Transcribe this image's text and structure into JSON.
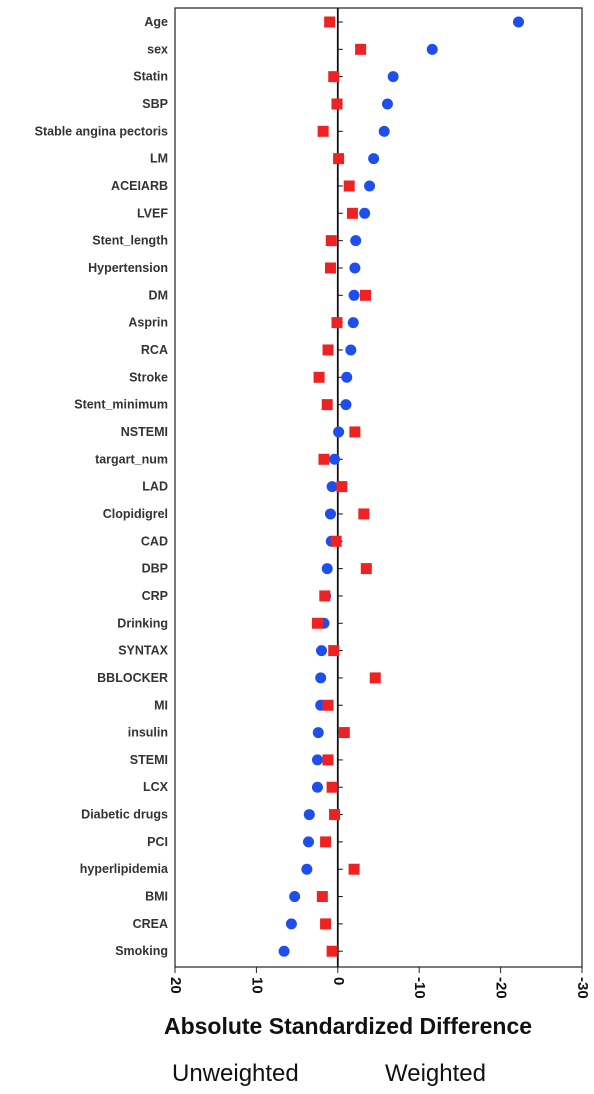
{
  "chart_data": {
    "type": "scatter",
    "xlabel": "Absolute Standardized Difference",
    "xlim": [
      20,
      -30
    ],
    "x_ticks": [
      20,
      10,
      0,
      -10,
      -20,
      -30
    ],
    "x_tick_labels": [
      "20",
      "10",
      "0",
      "-10",
      "-20",
      "-30"
    ],
    "reference_line": 0,
    "categories": [
      "Age",
      "sex",
      "Statin",
      "SBP",
      "Stable angina pectoris",
      "LM",
      "ACEIARB",
      "LVEF",
      "Stent_length",
      "Hypertension",
      "DM",
      "Asprin",
      "RCA",
      "Stroke",
      "Stent_minimum",
      "NSTEMI",
      "targart_num",
      "LAD",
      "Clopidigrel",
      "CAD",
      "DBP",
      "CRP",
      "Drinking",
      "SYNTAX",
      "BBLOCKER",
      "MI",
      "insulin",
      "STEMI",
      "LCX",
      "Diabetic drugs",
      "PCI",
      "hyperlipidemia",
      "BMI",
      "CREA",
      "Smoking"
    ],
    "series": [
      {
        "name": "Unweighted",
        "color": "#1f4ef0",
        "marker": "circle",
        "values": [
          -22.2,
          -11.6,
          -6.8,
          -6.1,
          -5.7,
          -4.4,
          -3.9,
          -3.3,
          -2.2,
          -2.1,
          -2.0,
          -1.9,
          -1.6,
          -1.1,
          -1.0,
          -0.1,
          0.4,
          0.7,
          0.9,
          0.8,
          1.3,
          1.5,
          1.7,
          2.0,
          2.1,
          2.1,
          2.4,
          2.5,
          2.5,
          3.5,
          3.6,
          3.8,
          5.3,
          5.7,
          6.6
        ]
      },
      {
        "name": "Weighted",
        "color": "#ee2222",
        "marker": "square",
        "values": [
          1.0,
          -2.8,
          0.5,
          0.1,
          1.8,
          -0.1,
          -1.4,
          -1.8,
          0.8,
          0.9,
          -3.4,
          0.1,
          1.2,
          2.3,
          1.3,
          -2.1,
          1.7,
          -0.5,
          -3.2,
          0.2,
          -3.5,
          1.6,
          2.5,
          0.5,
          -4.6,
          1.2,
          -0.8,
          1.2,
          0.7,
          0.4,
          1.5,
          -2.0,
          1.9,
          1.5,
          0.7
        ]
      }
    ],
    "legend": [
      "Unweighted",
      "Weighted"
    ],
    "legend_position": "bottom",
    "grid": false
  }
}
